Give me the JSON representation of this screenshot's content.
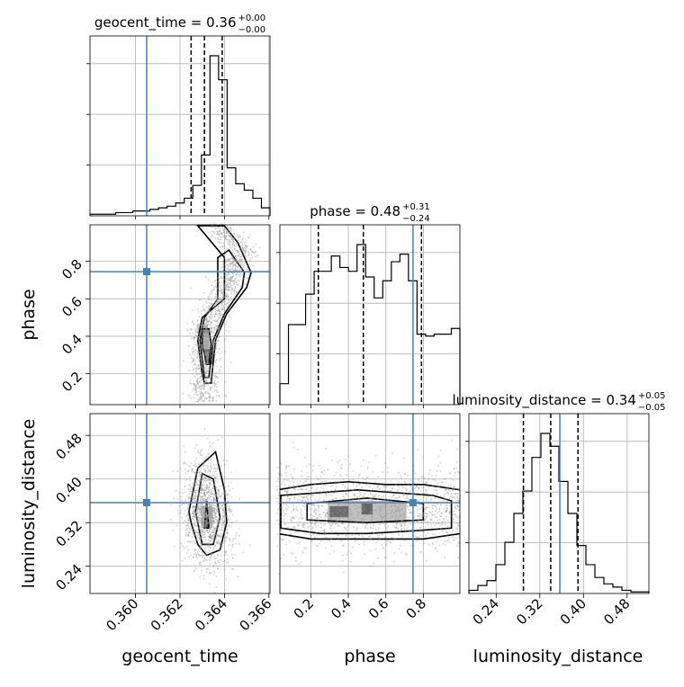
{
  "colors": {
    "truth": "#4682b4",
    "hist": "#000000",
    "quantile": "#000000",
    "points": "#9a9a9a",
    "grid": "#b0b0b0"
  },
  "chart_data": {
    "type": "corner",
    "parameters": [
      "geocent_time",
      "phase",
      "luminosity_distance"
    ],
    "ranges": {
      "geocent_time": [
        0.35795,
        0.36605
      ],
      "phase": [
        0.035,
        0.995
      ],
      "luminosity_distance": [
        0.19,
        0.52
      ]
    },
    "truths": {
      "geocent_time": 0.3605,
      "phase": 0.745,
      "luminosity_distance": 0.3567
    },
    "ticks": {
      "geocent_time": [
        "0.360",
        "0.362",
        "0.364",
        "0.366"
      ],
      "phase": [
        "0.2",
        "0.4",
        "0.6",
        "0.8"
      ],
      "luminosity_distance": [
        "0.24",
        "0.32",
        "0.40",
        "0.48"
      ]
    },
    "titles": {
      "geocent_time": {
        "name": "geocent_time",
        "median": "0.36",
        "plus": "+0.00",
        "minus": "−0.00"
      },
      "phase": {
        "name": "phase",
        "median": "0.48",
        "plus": "+0.31",
        "minus": "−0.24"
      },
      "luminosity_distance": {
        "name": "luminosity_distance",
        "median": "0.34",
        "plus": "+0.05",
        "minus": "−0.05"
      }
    },
    "quantiles": {
      "geocent_time": [
        0.3625,
        0.3631,
        0.3639
      ],
      "phase": [
        0.24,
        0.48,
        0.79
      ],
      "luminosity_distance": [
        0.29,
        0.34,
        0.39
      ]
    },
    "histograms": {
      "geocent_time": [
        0.01,
        0.01,
        0.01,
        0.02,
        0.02,
        0.03,
        0.03,
        0.04,
        0.05,
        0.06,
        0.08,
        0.11,
        0.19,
        0.38,
        1.0,
        0.85,
        0.3,
        0.2,
        0.16,
        0.11,
        0.05
      ],
      "phase": [
        0.11,
        0.42,
        0.42,
        0.58,
        0.7,
        0.7,
        0.78,
        0.72,
        0.7,
        0.84,
        0.67,
        0.56,
        0.65,
        0.75,
        0.79,
        0.65,
        0.37,
        0.36,
        0.37,
        0.37,
        0.4
      ],
      "luminosity_distance": [
        0.02,
        0.05,
        0.08,
        0.18,
        0.32,
        0.5,
        0.64,
        0.85,
        1.0,
        0.92,
        0.7,
        0.5,
        0.3,
        0.18,
        0.1,
        0.06,
        0.04,
        0.02,
        0.01,
        0.01
      ]
    },
    "grid": true
  }
}
